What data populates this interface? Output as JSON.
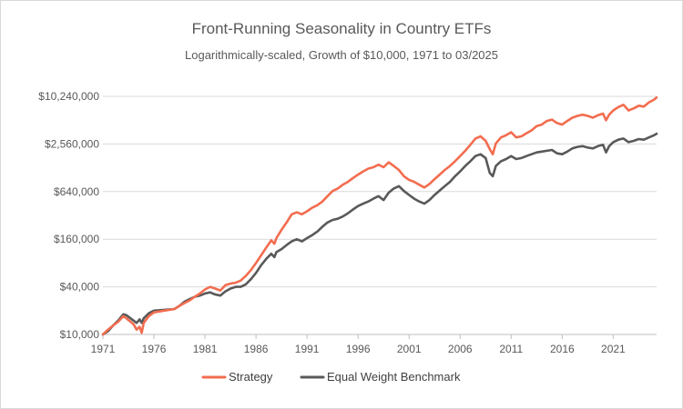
{
  "chart_data": {
    "type": "line",
    "title": "Front-Running Seasonality in Country ETFs",
    "subtitle": "Logarithmically-scaled, Growth of $10,000, 1971 to 03/2025",
    "xlabel": "",
    "ylabel": "",
    "y_scale": "log",
    "grid": true,
    "xlim": [
      1971,
      2025.25
    ],
    "ylim": [
      10000,
      10240000
    ],
    "x_ticks": [
      1971,
      1976,
      1981,
      1986,
      1991,
      1996,
      2001,
      2006,
      2011,
      2016,
      2021
    ],
    "x_tick_labels": [
      "1971",
      "1976",
      "1981",
      "1986",
      "1991",
      "1996",
      "2001",
      "2006",
      "2011",
      "2016",
      "2021"
    ],
    "y_ticks": [
      10000,
      40000,
      160000,
      640000,
      2560000,
      10240000
    ],
    "y_tick_labels": [
      "$10,000",
      "$40,000",
      "$160,000",
      "$640,000",
      "$2,560,000",
      "$10,240,000"
    ],
    "legend_position": "bottom-center",
    "series": [
      {
        "name": "Strategy",
        "color": "#f26d4f",
        "x": [
          1971,
          1971.5,
          1972,
          1972.5,
          1973,
          1973.3,
          1973.7,
          1974,
          1974.3,
          1974.6,
          1974.8,
          1975,
          1975.5,
          1976,
          1977,
          1978,
          1978.5,
          1979,
          1979.5,
          1980,
          1980.5,
          1981,
          1981.5,
          1982,
          1982.5,
          1983,
          1983.5,
          1984,
          1984.5,
          1985,
          1985.5,
          1986,
          1986.5,
          1987,
          1987.5,
          1987.8,
          1988,
          1988.5,
          1989,
          1989.5,
          1990,
          1990.5,
          1991,
          1991.5,
          1992,
          1992.5,
          1993,
          1993.5,
          1994,
          1994.5,
          1995,
          1995.5,
          1996,
          1996.5,
          1997,
          1997.5,
          1998,
          1998.5,
          1999,
          1999.5,
          2000,
          2000.5,
          2001,
          2001.5,
          2002,
          2002.5,
          2003,
          2003.5,
          2004,
          2004.5,
          2005,
          2005.5,
          2006,
          2006.5,
          2007,
          2007.5,
          2008,
          2008.5,
          2008.9,
          2009.2,
          2009.5,
          2010,
          2010.5,
          2011,
          2011.5,
          2012,
          2012.5,
          2013,
          2013.5,
          2014,
          2014.5,
          2015,
          2015.5,
          2016,
          2016.5,
          2017,
          2017.5,
          2018,
          2018.5,
          2019,
          2019.5,
          2020,
          2020.3,
          2020.6,
          2021,
          2021.5,
          2022,
          2022.5,
          2023,
          2023.5,
          2024,
          2024.5,
          2025,
          2025.25
        ],
        "values": [
          10000,
          11500,
          13000,
          14500,
          17000,
          16000,
          14500,
          13500,
          11500,
          12500,
          10500,
          14000,
          17000,
          19000,
          20000,
          21000,
          23000,
          25000,
          27000,
          30000,
          33000,
          37000,
          40000,
          38000,
          36000,
          42000,
          44000,
          45000,
          48000,
          55000,
          65000,
          80000,
          100000,
          125000,
          155000,
          140000,
          165000,
          210000,
          260000,
          330000,
          350000,
          330000,
          360000,
          400000,
          430000,
          480000,
          560000,
          650000,
          700000,
          780000,
          850000,
          950000,
          1050000,
          1150000,
          1250000,
          1300000,
          1400000,
          1300000,
          1500000,
          1350000,
          1200000,
          1000000,
          900000,
          850000,
          780000,
          720000,
          800000,
          920000,
          1050000,
          1200000,
          1350000,
          1550000,
          1800000,
          2100000,
          2500000,
          3000000,
          3200000,
          2800000,
          2200000,
          1900000,
          2600000,
          3100000,
          3300000,
          3600000,
          3100000,
          3200000,
          3500000,
          3800000,
          4300000,
          4500000,
          5000000,
          5200000,
          4700000,
          4500000,
          5000000,
          5500000,
          5800000,
          6000000,
          5800000,
          5500000,
          5900000,
          6200000,
          5100000,
          6000000,
          6800000,
          7500000,
          8000000,
          6800000,
          7200000,
          7800000,
          7600000,
          8600000,
          9300000,
          9900000
        ]
      },
      {
        "name": "Equal Weight Benchmark",
        "color": "#595959",
        "x": [
          1971,
          1971.5,
          1972,
          1972.5,
          1973,
          1973.3,
          1973.7,
          1974,
          1974.3,
          1974.6,
          1974.8,
          1975,
          1975.5,
          1976,
          1977,
          1978,
          1978.5,
          1979,
          1979.5,
          1980,
          1980.5,
          1981,
          1981.5,
          1982,
          1982.5,
          1983,
          1983.5,
          1984,
          1984.5,
          1985,
          1985.5,
          1986,
          1986.5,
          1987,
          1987.5,
          1987.8,
          1988,
          1988.5,
          1989,
          1989.5,
          1990,
          1990.5,
          1991,
          1991.5,
          1992,
          1992.5,
          1993,
          1993.5,
          1994,
          1994.5,
          1995,
          1995.5,
          1996,
          1996.5,
          1997,
          1997.5,
          1998,
          1998.5,
          1999,
          1999.5,
          2000,
          2000.5,
          2001,
          2001.5,
          2002,
          2002.5,
          2003,
          2003.5,
          2004,
          2004.5,
          2005,
          2005.5,
          2006,
          2006.5,
          2007,
          2007.5,
          2008,
          2008.5,
          2008.9,
          2009.2,
          2009.5,
          2010,
          2010.5,
          2011,
          2011.5,
          2012,
          2012.5,
          2013,
          2013.5,
          2014,
          2014.5,
          2015,
          2015.5,
          2016,
          2016.5,
          2017,
          2017.5,
          2018,
          2018.5,
          2019,
          2019.5,
          2020,
          2020.3,
          2020.6,
          2021,
          2021.5,
          2022,
          2022.5,
          2023,
          2023.5,
          2024,
          2024.5,
          2025,
          2025.25
        ],
        "values": [
          10000,
          11000,
          13000,
          15000,
          18000,
          17500,
          16000,
          15000,
          14000,
          15500,
          14000,
          16000,
          18500,
          20000,
          20500,
          21000,
          23000,
          26000,
          28000,
          30000,
          31000,
          33000,
          34000,
          32000,
          31000,
          35000,
          38000,
          40000,
          40000,
          43000,
          50000,
          60000,
          75000,
          90000,
          105000,
          95000,
          110000,
          120000,
          135000,
          150000,
          160000,
          150000,
          165000,
          180000,
          200000,
          230000,
          260000,
          280000,
          290000,
          310000,
          340000,
          380000,
          420000,
          450000,
          480000,
          520000,
          560000,
          500000,
          620000,
          700000,
          750000,
          650000,
          580000,
          520000,
          480000,
          450000,
          500000,
          580000,
          660000,
          750000,
          850000,
          1000000,
          1150000,
          1350000,
          1550000,
          1800000,
          1900000,
          1700000,
          1100000,
          1000000,
          1350000,
          1550000,
          1650000,
          1800000,
          1650000,
          1700000,
          1800000,
          1900000,
          2000000,
          2050000,
          2100000,
          2150000,
          1950000,
          1900000,
          2050000,
          2250000,
          2350000,
          2400000,
          2300000,
          2250000,
          2400000,
          2500000,
          2000000,
          2400000,
          2700000,
          2900000,
          3000000,
          2700000,
          2800000,
          2950000,
          2900000,
          3100000,
          3300000,
          3450000
        ]
      }
    ]
  }
}
